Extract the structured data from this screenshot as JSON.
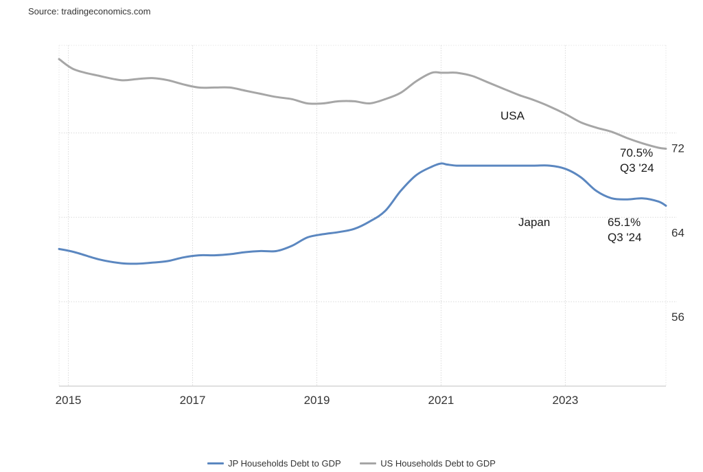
{
  "source": "Source: tradingeconomics.com",
  "chart_data": {
    "type": "line",
    "x_ticks": [
      "2015",
      "2017",
      "2019",
      "2021",
      "2023"
    ],
    "y_ticks": [
      "56",
      "64",
      "72"
    ],
    "xlim": [
      2014.85,
      2024.62
    ],
    "ylim": [
      48,
      80.3
    ],
    "grid": true,
    "legend_position": "bottom",
    "series": [
      {
        "name": "JP Households Debt to GDP",
        "color": "#5b87c0",
        "x": [
          2014.85,
          2015.1,
          2015.5,
          2015.85,
          2016.1,
          2016.35,
          2016.6,
          2016.85,
          2017.1,
          2017.35,
          2017.6,
          2017.85,
          2018.1,
          2018.35,
          2018.6,
          2018.85,
          2019.1,
          2019.35,
          2019.6,
          2019.85,
          2020.1,
          2020.35,
          2020.6,
          2020.85,
          2021.0,
          2021.1,
          2021.25,
          2021.5,
          2021.75,
          2022.0,
          2022.25,
          2022.5,
          2022.75,
          2023.0,
          2023.25,
          2023.5,
          2023.75,
          2024.0,
          2024.25,
          2024.5,
          2024.62
        ],
        "y": [
          61.0,
          60.7,
          60.0,
          59.65,
          59.6,
          59.7,
          59.85,
          60.2,
          60.4,
          60.4,
          60.5,
          60.7,
          60.8,
          60.8,
          61.3,
          62.1,
          62.4,
          62.6,
          62.9,
          63.6,
          64.6,
          66.5,
          68.0,
          68.8,
          69.1,
          69.0,
          68.9,
          68.9,
          68.9,
          68.9,
          68.9,
          68.9,
          68.9,
          68.6,
          67.8,
          66.5,
          65.8,
          65.7,
          65.8,
          65.5,
          65.1
        ],
        "callout_name": "Japan",
        "callout_value": "65.1%",
        "callout_date": "Q3 '24"
      },
      {
        "name": "US Households Debt to GDP",
        "color": "#a6a6a6",
        "x": [
          2014.85,
          2015.1,
          2015.5,
          2015.85,
          2016.1,
          2016.35,
          2016.6,
          2016.85,
          2017.1,
          2017.35,
          2017.6,
          2017.85,
          2018.1,
          2018.35,
          2018.6,
          2018.85,
          2019.1,
          2019.35,
          2019.6,
          2019.85,
          2020.1,
          2020.35,
          2020.6,
          2020.85,
          2021.0,
          2021.1,
          2021.25,
          2021.5,
          2021.75,
          2022.0,
          2022.25,
          2022.5,
          2022.75,
          2023.0,
          2023.25,
          2023.5,
          2023.75,
          2024.0,
          2024.25,
          2024.5,
          2024.62
        ],
        "y": [
          79.0,
          78.0,
          77.4,
          77.0,
          77.1,
          77.2,
          77.0,
          76.6,
          76.3,
          76.3,
          76.3,
          76.0,
          75.7,
          75.4,
          75.2,
          74.8,
          74.8,
          75.0,
          75.0,
          74.8,
          75.2,
          75.8,
          76.9,
          77.7,
          77.7,
          77.7,
          77.7,
          77.4,
          76.8,
          76.2,
          75.6,
          75.1,
          74.5,
          73.8,
          73.0,
          72.5,
          72.1,
          71.5,
          71.0,
          70.6,
          70.5
        ],
        "callout_name": "USA",
        "callout_value": "70.5%",
        "callout_date": "Q3 '24"
      }
    ]
  }
}
